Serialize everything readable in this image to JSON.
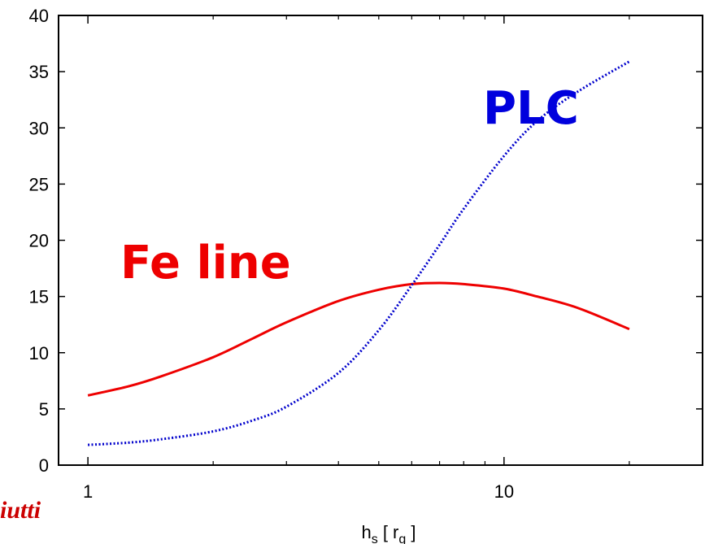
{
  "chart_data": {
    "type": "line",
    "xscale": "log",
    "xlim": [
      0.85,
      30
    ],
    "ylim": [
      0,
      40
    ],
    "xticks": [
      1,
      10
    ],
    "yticks": [
      0,
      5,
      10,
      15,
      20,
      25,
      30,
      35,
      40
    ],
    "xlabel_main": "h",
    "xlabel_sub": "s",
    "xlabel_mid": " [ r",
    "xlabel_sub2": "g",
    "xlabel_end": " ]",
    "ylabel": "",
    "title": "",
    "grid": false,
    "series": [
      {
        "name": "Fe line",
        "color": "#ee0000",
        "style": "solid",
        "x": [
          1,
          1.25,
          1.5,
          2,
          2.5,
          3,
          4,
          5,
          6,
          7,
          8,
          10,
          12,
          15,
          20
        ],
        "y": [
          6.2,
          7.0,
          7.9,
          9.6,
          11.3,
          12.7,
          14.6,
          15.6,
          16.1,
          16.2,
          16.1,
          15.7,
          15.0,
          14.0,
          12.1
        ]
      },
      {
        "name": "PLC",
        "color": "#0000cc",
        "style": "dotted",
        "x": [
          1,
          1.25,
          1.5,
          2,
          2.5,
          3,
          4,
          5,
          6,
          7,
          8,
          10,
          12,
          15,
          20
        ],
        "y": [
          1.8,
          2.0,
          2.3,
          3.0,
          4.0,
          5.2,
          8.2,
          12.0,
          16.0,
          19.6,
          22.8,
          27.5,
          30.6,
          33.2,
          35.9
        ]
      }
    ]
  },
  "credit_text": "iutti"
}
